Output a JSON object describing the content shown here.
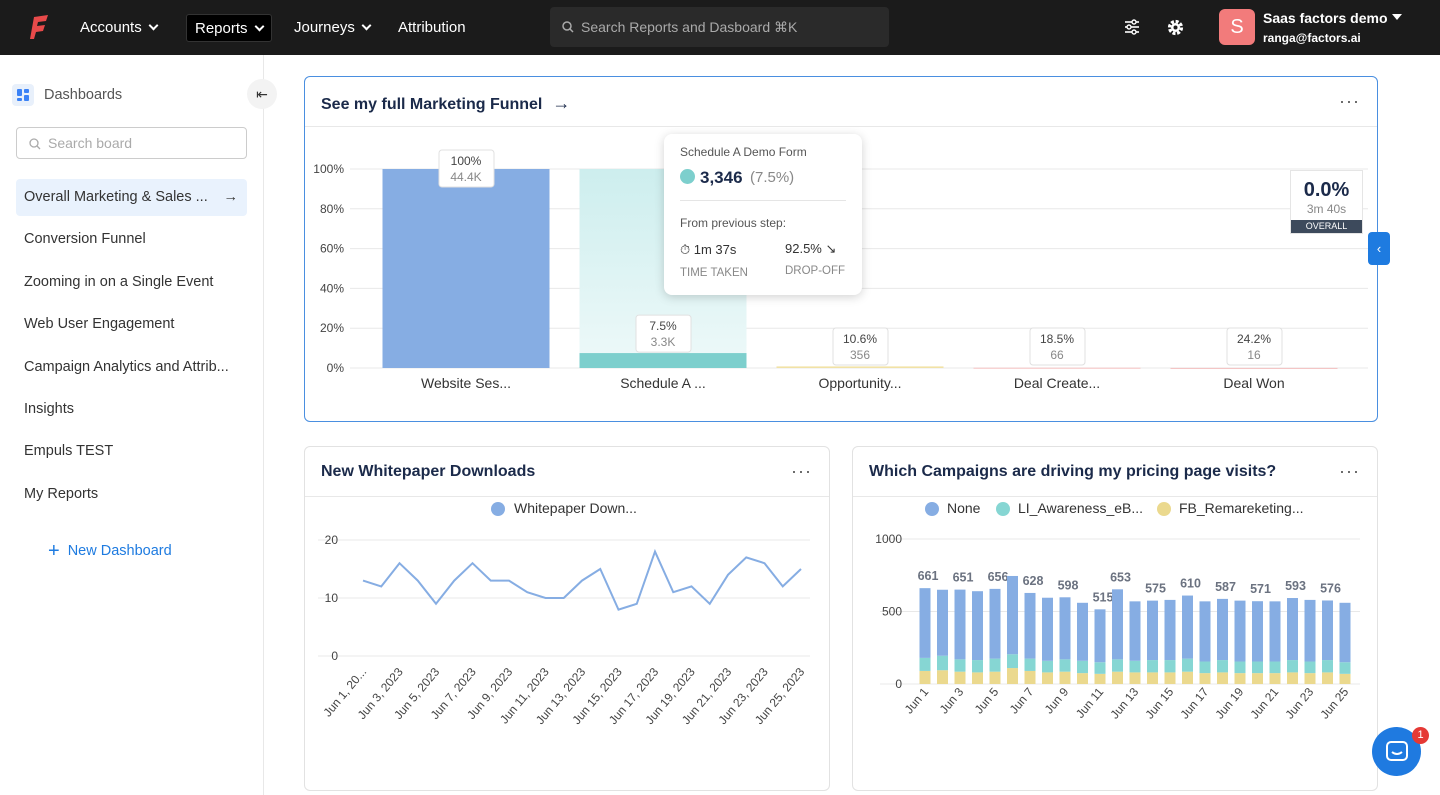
{
  "nav": {
    "items": [
      "Accounts",
      "Reports",
      "Journeys",
      "Attribution"
    ],
    "search": "Search Reports and Dasboard ⌘K",
    "user": {
      "avatar": "S",
      "name": "Saas factors demo",
      "email": "ranga@factors.ai"
    }
  },
  "sidebar": {
    "title": "Dashboards",
    "search": "Search board",
    "items": [
      "Overall Marketing & Sales ...",
      "Conversion Funnel",
      "Zooming in on a Single Event",
      "Web User Engagement",
      "Campaign Analytics and Attrib...",
      "Insights",
      "Empuls TEST",
      "My Reports"
    ],
    "new": "New Dashboard"
  },
  "funnel": {
    "type": "funnel-bar",
    "title": "See my full Marketing Funnel",
    "categories": [
      "Website Ses...",
      "Schedule A ...",
      "Opportunity...",
      "Deal Create...",
      "Deal Won"
    ],
    "values": [
      100,
      7.5,
      0.8,
      0.15,
      0.04
    ],
    "colors": [
      "#86ade3",
      "#7dcfcd",
      "#f1e2a6",
      "#f4c0c0",
      "#f4c0c0"
    ],
    "conversion_labels": [
      "100%",
      "7.5%",
      "10.6%",
      "18.5%",
      "24.2%"
    ],
    "count_labels": [
      "44.4K",
      "3.3K",
      "356",
      "66",
      "16"
    ],
    "ylim": [
      0,
      100
    ],
    "yticks": [
      {
        "value": 0,
        "label": "0%"
      },
      {
        "value": 20,
        "label": "20%"
      },
      {
        "value": 40,
        "label": "40%"
      },
      {
        "value": 60,
        "label": "60%"
      },
      {
        "value": 80,
        "label": "80%"
      },
      {
        "value": 100,
        "label": "100%"
      }
    ],
    "grid": true,
    "tooltip": {
      "title": "Schedule A Demo Form",
      "count": "3,346",
      "percent": "(7.5%)",
      "subtitle": "From previous step:",
      "time": "1m 37s",
      "time_label": "TIME TAKEN",
      "dropoff": "92.5%",
      "dropoff_label": "DROP-OFF"
    },
    "overall": {
      "value": "0.0%",
      "time": "3m 40s",
      "label": "OVERALL"
    }
  },
  "whitepaper": {
    "type": "line",
    "title": "New Whitepaper Downloads",
    "categories": [
      "Jun 1, 20...",
      null,
      "Jun 3, 2023",
      null,
      "Jun 5, 2023",
      null,
      "Jun 7, 2023",
      null,
      "Jun 9, 2023",
      null,
      "Jun 11, 2023",
      null,
      "Jun 13, 2023",
      null,
      "Jun 15, 2023",
      null,
      "Jun 17, 2023",
      null,
      "Jun 19, 2023",
      null,
      "Jun 21, 2023",
      null,
      "Jun 23, 2023",
      null,
      "Jun 25, 2023"
    ],
    "series": [
      {
        "name": "Whitepaper Down...",
        "color": "#86ade3",
        "values": [
          13,
          12,
          16,
          13,
          9,
          13,
          16,
          13,
          13,
          11,
          10,
          10,
          13,
          15,
          8,
          9,
          18,
          11,
          12,
          9,
          14,
          17,
          16,
          12,
          15
        ]
      }
    ],
    "ylim": [
      0,
      20
    ],
    "yticks": [
      0,
      10,
      20
    ],
    "grid": true
  },
  "campaigns": {
    "type": "stacked-bar",
    "title": "Which Campaigns are driving my pricing page visits?",
    "categories": [
      "Jun 1",
      null,
      "Jun 3",
      null,
      "Jun 5",
      null,
      "Jun 7",
      null,
      "Jun 9",
      null,
      "Jun 11",
      null,
      "Jun 13",
      null,
      "Jun 15",
      null,
      "Jun 17",
      null,
      "Jun 19",
      null,
      "Jun 21",
      null,
      "Jun 23",
      null,
      "Jun 25"
    ],
    "series": [
      {
        "name": "None",
        "color": "#86ade3",
        "values": [
          481,
          455,
          481,
          475,
          481,
          540,
          453,
          435,
          428,
          400,
          365,
          483,
          410,
          410,
          415,
          435,
          415,
          422,
          420,
          416,
          415,
          428,
          425,
          411,
          410
        ]
      },
      {
        "name": "LI_Awareness_eB...",
        "color": "#86d6d3",
        "values": [
          90,
          100,
          85,
          85,
          90,
          95,
          85,
          80,
          85,
          85,
          80,
          85,
          80,
          85,
          85,
          90,
          80,
          85,
          80,
          80,
          80,
          85,
          80,
          85,
          80
        ]
      },
      {
        "name": "FB_Remareketing...",
        "color": "#ebd98e",
        "values": [
          90,
          95,
          85,
          80,
          85,
          110,
          90,
          80,
          85,
          75,
          70,
          85,
          80,
          80,
          80,
          85,
          75,
          80,
          75,
          75,
          75,
          80,
          75,
          80,
          70
        ]
      }
    ],
    "totals": [
      661,
      null,
      651,
      null,
      656,
      null,
      628,
      null,
      598,
      null,
      515,
      653,
      null,
      575,
      null,
      610,
      null,
      587,
      null,
      571,
      null,
      593,
      null,
      576,
      null
    ],
    "ylim": [
      0,
      1000
    ],
    "yticks": [
      0,
      500,
      1000
    ],
    "grid": true
  },
  "chat_badge": "1"
}
